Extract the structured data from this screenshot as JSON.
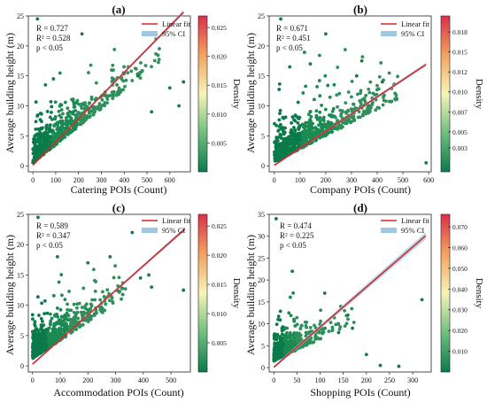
{
  "chart_data": [
    {
      "type": "scatter",
      "panel_label": "(a)",
      "xlabel": "Catering POIs (Count)",
      "ylabel": "Average building height (m)",
      "xlim": [
        -20,
        690
      ],
      "ylim": [
        -1,
        25
      ],
      "xticks": [
        0,
        100,
        200,
        300,
        400,
        500,
        600
      ],
      "yticks": [
        0,
        5,
        10,
        15,
        20,
        25
      ],
      "fit": {
        "slope": 0.0387,
        "intercept": 0.1,
        "x_end": 660,
        "ci_half_width": 0.3
      },
      "stats": {
        "r": "R = 0.727",
        "r2": "R² = 0.528",
        "p": "p  < 0.05"
      },
      "legend": {
        "fit": "Linear fit",
        "ci": "95% CI",
        "position": "top-right"
      },
      "colorbar": {
        "label": "Density",
        "ticks": [
          "0.005",
          "0.010",
          "0.015",
          "0.020",
          "0.025"
        ],
        "tick_values": [
          0.005,
          0.01,
          0.015,
          0.02,
          0.025
        ],
        "max": 0.027
      },
      "cloud": {
        "n": 650,
        "x_spread": 140,
        "x_max": 560,
        "y_base": 0.5,
        "y_slope": 0.03,
        "y_noise": 2.4
      },
      "outliers": [
        [
          400,
          15.5
        ],
        [
          520,
          9
        ],
        [
          640,
          10
        ],
        [
          600,
          13
        ],
        [
          215,
          22
        ],
        [
          55,
          13.5
        ],
        [
          90,
          14.5
        ],
        [
          460,
          15
        ],
        [
          660,
          14
        ]
      ],
      "top_point": [
        20,
        24.5
      ]
    },
    {
      "type": "scatter",
      "panel_label": "(b)",
      "xlabel": "Company POIs (Count)",
      "ylabel": "Average building height (m)",
      "xlim": [
        -20,
        610
      ],
      "ylim": [
        -1,
        25
      ],
      "xticks": [
        0,
        100,
        200,
        300,
        400,
        500,
        600
      ],
      "yticks": [
        0,
        5,
        10,
        15,
        20,
        25
      ],
      "fit": {
        "slope": 0.0285,
        "intercept": 0.1,
        "x_end": 590,
        "ci_half_width": 0.3
      },
      "stats": {
        "r": "R = 0.671",
        "r2": "R² = 0.451",
        "p": "p  < 0.05"
      },
      "legend": {
        "fit": "Linear fit",
        "ci": "95% CI",
        "position": "top-right"
      },
      "colorbar": {
        "label": "Density",
        "ticks": [
          "0.003",
          "0.005",
          "0.007",
          "0.010",
          "0.012",
          "0.015",
          "0.018"
        ],
        "tick_values": [
          0.003,
          0.005,
          0.0075,
          0.01,
          0.0125,
          0.015,
          0.0175
        ],
        "max": 0.0195
      },
      "cloud": {
        "n": 750,
        "x_spread": 170,
        "x_max": 480,
        "y_base": 0.6,
        "y_slope": 0.022,
        "y_noise": 2.4
      },
      "outliers": [
        [
          590,
          0.5
        ],
        [
          340,
          17.5
        ],
        [
          200,
          22
        ],
        [
          420,
          14
        ],
        [
          320,
          15
        ],
        [
          140,
          17
        ],
        [
          60,
          16.5
        ]
      ],
      "top_point": [
        25,
        24.5
      ]
    },
    {
      "type": "scatter",
      "panel_label": "(c)",
      "xlabel": "Accommodation POIs (Count)",
      "ylabel": "Average building height (m)",
      "xlim": [
        -15,
        570
      ],
      "ylim": [
        -1,
        25
      ],
      "xticks": [
        0,
        100,
        200,
        300,
        400,
        500
      ],
      "yticks": [
        0,
        5,
        10,
        15,
        20,
        25
      ],
      "fit": {
        "slope": 0.0405,
        "intercept": 0.3,
        "x_end": 550,
        "ci_half_width": 0.3
      },
      "stats": {
        "r": "R = 0.589",
        "r2": "R² = 0.347",
        "p": "p  < 0.05"
      },
      "legend": {
        "fit": "Linear fit",
        "ci": "95% CI",
        "position": "top-right"
      },
      "colorbar": {
        "label": "Density",
        "ticks": [
          "0.005",
          "0.010",
          "0.015",
          "0.020",
          "0.025"
        ],
        "tick_values": [
          0.005,
          0.01,
          0.015,
          0.02,
          0.025
        ],
        "max": 0.027
      },
      "cloud": {
        "n": 650,
        "x_spread": 90,
        "x_max": 340,
        "y_base": 1.2,
        "y_slope": 0.03,
        "y_noise": 2.4
      },
      "outliers": [
        [
          545,
          12.5
        ],
        [
          420,
          15
        ],
        [
          360,
          22
        ],
        [
          280,
          18
        ],
        [
          430,
          13
        ],
        [
          390,
          14.5
        ],
        [
          200,
          17
        ],
        [
          90,
          18
        ]
      ],
      "top_point": [
        20,
        24.5
      ]
    },
    {
      "type": "scatter",
      "panel_label": "(d)",
      "xlabel": "Shopping POIs (Count)",
      "ylabel": "Average building height (m)",
      "xlim": [
        -10,
        340
      ],
      "ylim": [
        -1,
        35
      ],
      "xticks": [
        0,
        50,
        100,
        150,
        200,
        250,
        300
      ],
      "yticks": [
        0,
        5,
        10,
        15,
        20,
        25,
        30,
        35
      ],
      "fit": {
        "slope": 0.0915,
        "intercept": 0.1,
        "x_end": 328,
        "ci_half_width": 0.8
      },
      "stats": {
        "r": "R = 0.474",
        "r2": "R² = 0.225",
        "p": "p  < 0.05"
      },
      "legend": {
        "fit": "Linear fit",
        "ci": "95% CI",
        "position": "top-right"
      },
      "colorbar": {
        "label": "Density",
        "ticks": [
          "0.010",
          "0.020",
          "0.030",
          "0.040",
          "0.050",
          "0.060",
          "0.070"
        ],
        "tick_values": [
          0.01,
          0.02,
          0.03,
          0.04,
          0.05,
          0.06,
          0.07
        ],
        "max": 0.076
      },
      "cloud": {
        "n": 600,
        "x_spread": 35,
        "x_max": 180,
        "y_base": 1.5,
        "y_slope": 0.05,
        "y_noise": 2.6
      },
      "outliers": [
        [
          320,
          15.5
        ],
        [
          230,
          0.5
        ],
        [
          270,
          0.3
        ],
        [
          160,
          12
        ],
        [
          140,
          8
        ],
        [
          110,
          17
        ],
        [
          200,
          3
        ],
        [
          40,
          22
        ],
        [
          170,
          9
        ]
      ],
      "top_point": [
        5,
        34
      ]
    }
  ]
}
